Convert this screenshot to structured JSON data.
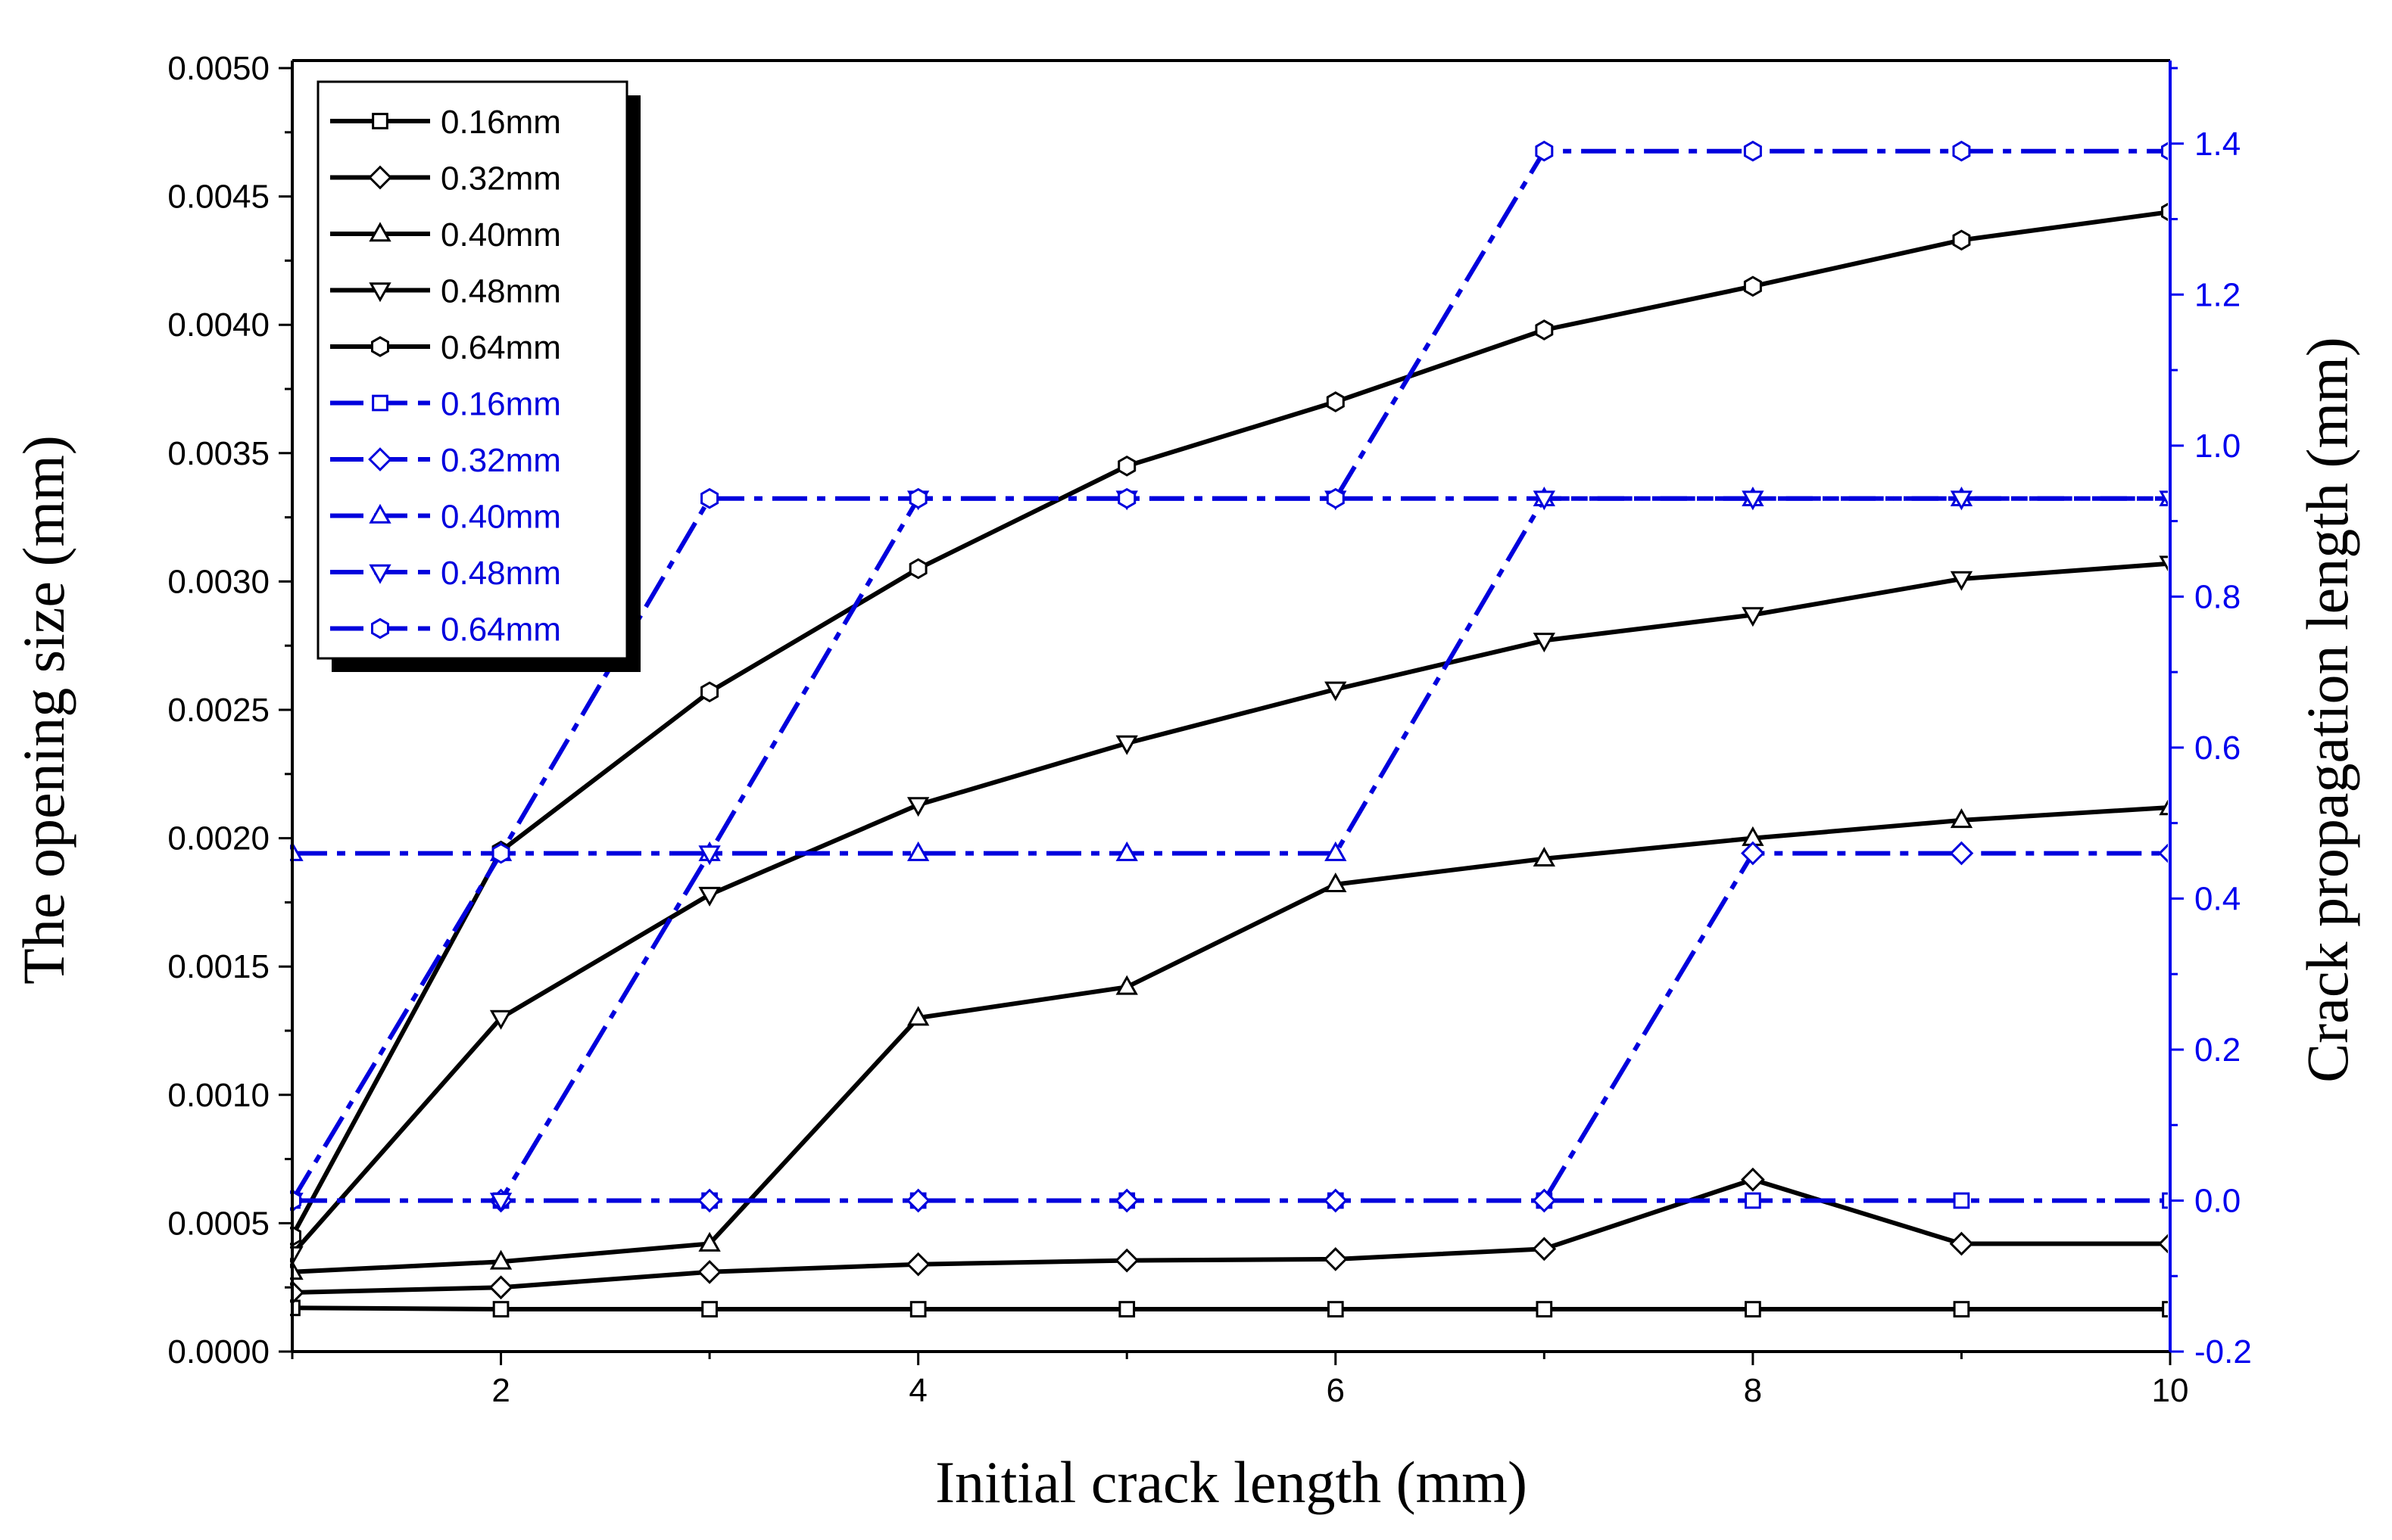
{
  "chart_data": {
    "type": "line",
    "title": "",
    "xlabel": "Initial crack length (mm)",
    "ylabel": "The opening size (mm)",
    "y2label": "Crack propagation length (mm)",
    "xlim": [
      1,
      10
    ],
    "ylim": [
      0,
      0.005
    ],
    "y2lim": [
      -0.2,
      1.5
    ],
    "xticks": [
      2,
      4,
      6,
      8,
      10
    ],
    "yticks": [
      0.0,
      0.0005,
      0.001,
      0.0015,
      0.002,
      0.0025,
      0.003,
      0.0035,
      0.004,
      0.0045,
      0.005
    ],
    "ytick_labels": [
      "0.0000",
      "0.0005",
      "0.0010",
      "0.0015",
      "0.0020",
      "0.0025",
      "0.0030",
      "0.0035",
      "0.0040",
      "0.0045",
      "0.0050"
    ],
    "y2ticks": [
      -0.2,
      0.0,
      0.2,
      0.4,
      0.6,
      0.8,
      1.0,
      1.2,
      1.4
    ],
    "y2tick_labels": [
      "-0.2",
      "0.0",
      "0.2",
      "0.4",
      "0.6",
      "0.8",
      "1.0",
      "1.2",
      "1.4"
    ],
    "grid": false,
    "legend_position": "top-left",
    "colors": {
      "opening": "#000000",
      "propagation": "#0000dd",
      "axis_right": "#0000ee"
    },
    "x": [
      1,
      2,
      3,
      4,
      5,
      6,
      7,
      8,
      9,
      10
    ],
    "series": [
      {
        "name": "0.16mm",
        "axis": "left",
        "marker": "square",
        "style": "solid",
        "values": [
          0.00017,
          0.000165,
          0.000165,
          0.000165,
          0.000165,
          0.000165,
          0.000165,
          0.000165,
          0.000165,
          0.000165
        ]
      },
      {
        "name": "0.32mm",
        "axis": "left",
        "marker": "diamond",
        "style": "solid",
        "values": [
          0.00023,
          0.00025,
          0.00031,
          0.00034,
          0.000355,
          0.00036,
          0.0004,
          0.00067,
          0.00042,
          0.00042
        ]
      },
      {
        "name": "0.40mm",
        "axis": "left",
        "marker": "triangle-up",
        "style": "solid",
        "values": [
          0.00031,
          0.00035,
          0.00042,
          0.0013,
          0.00142,
          0.00182,
          0.00192,
          0.002,
          0.00207,
          0.00212
        ]
      },
      {
        "name": "0.48mm",
        "axis": "left",
        "marker": "triangle-down",
        "style": "solid",
        "values": [
          0.00038,
          0.0013,
          0.00178,
          0.00213,
          0.00237,
          0.00258,
          0.00277,
          0.00287,
          0.00301,
          0.00307
        ]
      },
      {
        "name": "0.64mm",
        "axis": "left",
        "marker": "hexagon",
        "style": "solid",
        "values": [
          0.00045,
          0.00195,
          0.00257,
          0.00305,
          0.00345,
          0.0037,
          0.00398,
          0.00415,
          0.00433,
          0.00444
        ]
      },
      {
        "name": "0.16mm",
        "axis": "right",
        "marker": "square",
        "style": "dashdot",
        "values": [
          0.0,
          0.0,
          0.0,
          0.0,
          0.0,
          0.0,
          0.0,
          0.0,
          0.0,
          0.0
        ]
      },
      {
        "name": "0.32mm",
        "axis": "right",
        "marker": "diamond",
        "style": "dashdot",
        "values": [
          0.0,
          0.0,
          0.0,
          0.0,
          0.0,
          0.0,
          0.0,
          0.46,
          0.46,
          0.46
        ]
      },
      {
        "name": "0.40mm",
        "axis": "right",
        "marker": "triangle-up",
        "style": "dashdot",
        "values": [
          0.46,
          0.46,
          0.46,
          0.46,
          0.46,
          0.46,
          0.93,
          0.93,
          0.93,
          0.93
        ]
      },
      {
        "name": "0.48mm",
        "axis": "right",
        "marker": "triangle-down",
        "style": "dashdot",
        "values": [
          0.0,
          0.0,
          0.46,
          0.93,
          0.93,
          0.93,
          0.93,
          0.93,
          0.93,
          0.93
        ]
      },
      {
        "name": "0.64mm",
        "axis": "right",
        "marker": "hexagon",
        "style": "dashdot",
        "values": [
          0.0,
          0.46,
          0.93,
          0.93,
          0.93,
          0.93,
          1.39,
          1.39,
          1.39,
          1.39
        ]
      }
    ]
  }
}
